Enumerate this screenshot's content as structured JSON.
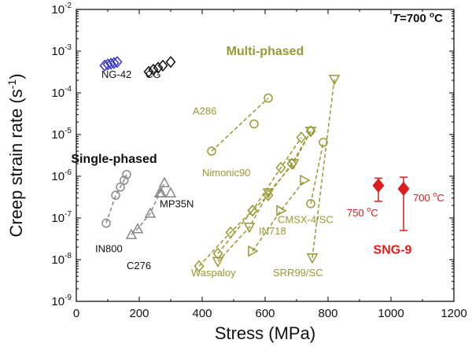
{
  "chart_data": {
    "type": "scatter",
    "title": "",
    "xlabel": "Stress (MPa)",
    "ylabel_main": "Creep strain rate (s",
    "ylabel_sup": "-1",
    "ylabel_close": ")",
    "xscale": "linear",
    "yscale": "log",
    "xlim": [
      0,
      1200
    ],
    "ylim": [
      1e-09,
      0.01
    ],
    "xticks": [
      0,
      200,
      400,
      600,
      800,
      1000,
      1200
    ],
    "xtick_labels": [
      "0",
      "200",
      "400",
      "600",
      "800",
      "1000",
      "1200"
    ],
    "ytick_exponents": [
      -9,
      -8,
      -7,
      -6,
      -5,
      -4,
      -3,
      -2
    ],
    "ytick_base": "10",
    "grid": false,
    "temperature_label": {
      "italic": "T",
      "value": "=700 ",
      "sup": "o",
      "unit": "C"
    },
    "group_labels": [
      {
        "id": "multi",
        "text": "Multi-phased",
        "color": "#999933"
      },
      {
        "id": "single",
        "text": "Single-phased",
        "color": "#111111"
      },
      {
        "id": "sng",
        "text": "SNG-9",
        "color": "#dd1c1c"
      }
    ],
    "series": [
      {
        "name": "NG-42",
        "marker": "diamond",
        "color": "#3333cc",
        "connected": false,
        "x": [
          90,
          100,
          110,
          120,
          130
        ],
        "y": [
          0.00045,
          0.00048,
          0.0005,
          0.00052,
          0.00055
        ]
      },
      {
        "name": "CG",
        "marker": "diamond",
        "color": "#111111",
        "connected": false,
        "x": [
          230,
          245,
          260,
          275,
          300
        ],
        "y": [
          0.00032,
          0.00036,
          0.0004,
          0.00045,
          0.00055
        ]
      },
      {
        "name": "A286",
        "marker": "circle",
        "color": "#999933",
        "connected": true,
        "x": [
          430,
          610
        ],
        "y": [
          4e-06,
          7.5e-05
        ]
      },
      {
        "name": "A286-extra",
        "marker": "circle",
        "color": "#999933",
        "connected": false,
        "x": [
          565
        ],
        "y": [
          1.8e-05
        ]
      },
      {
        "name": "Nimonic90",
        "marker": "diamond",
        "color": "#999933",
        "connected": true,
        "x": [
          390,
          490,
          560,
          650,
          715
        ],
        "y": [
          7e-09,
          4.5e-08,
          1.5e-07,
          1.6e-06,
          8.5e-06
        ]
      },
      {
        "name": "Waspaloy",
        "marker": "diamond",
        "color": "#999933",
        "connected": true,
        "x": [
          450,
          560,
          610,
          685,
          745
        ],
        "y": [
          1.4e-08,
          1.5e-07,
          3.5e-07,
          2e-06,
          1.2e-05
        ]
      },
      {
        "name": "IN718",
        "marker": "triangle-down",
        "color": "#999933",
        "connected": true,
        "x": [
          450,
          550,
          610,
          690,
          745
        ],
        "y": [
          9e-09,
          6e-08,
          4e-07,
          2e-06,
          1.2e-05
        ]
      },
      {
        "name": "IN718-b",
        "marker": "triangle-right",
        "color": "#999933",
        "connected": true,
        "x": [
          560,
          650,
          725
        ],
        "y": [
          1.6e-08,
          1.5e-07,
          8e-07
        ]
      },
      {
        "name": "CMSX-4/SC",
        "marker": "circle",
        "color": "#999933",
        "connected": true,
        "x": [
          745,
          785
        ],
        "y": [
          2.2e-07,
          6.5e-06
        ]
      },
      {
        "name": "SRR99/SC",
        "marker": "triangle-down",
        "color": "#999933",
        "connected": true,
        "x": [
          750,
          820
        ],
        "y": [
          1.1e-08,
          0.00021
        ]
      },
      {
        "name": "IN800",
        "marker": "circle",
        "color": "#888888",
        "connected": true,
        "x": [
          95,
          125,
          140,
          152,
          160
        ],
        "y": [
          7.5e-08,
          3.5e-07,
          5.5e-07,
          8e-07,
          1.1e-06
        ]
      },
      {
        "name": "C276",
        "marker": "triangle-up",
        "color": "#888888",
        "connected": true,
        "x": [
          175,
          195,
          235,
          265,
          280
        ],
        "y": [
          4e-08,
          5.5e-08,
          1.3e-07,
          4e-07,
          7e-07
        ]
      },
      {
        "name": "MP35N",
        "marker": "triangle-up",
        "color": "#888888",
        "connected": false,
        "x": [
          270,
          300
        ],
        "y": [
          4e-07,
          4e-07
        ]
      },
      {
        "name": "SNG-9 750",
        "marker": "filled-diamond",
        "color": "#dd1c1c",
        "connected": false,
        "x": [
          960
        ],
        "y": [
          6e-07
        ],
        "yerr_low": [
          2.5e-07
        ],
        "yerr_high": [
          9e-07
        ]
      },
      {
        "name": "SNG-9 700",
        "marker": "filled-diamond",
        "color": "#dd1c1c",
        "connected": false,
        "x": [
          1040
        ],
        "y": [
          5e-07
        ],
        "yerr_low": [
          5e-08
        ],
        "yerr_high": [
          9.5e-07
        ]
      }
    ],
    "annotations": [
      {
        "id": "ng42",
        "text": "NG-42",
        "color": "#111111",
        "x": 80,
        "y": 0.00023
      },
      {
        "id": "cg",
        "text": "CG",
        "color": "#111111",
        "x": 220,
        "y": 0.00023
      },
      {
        "id": "a286",
        "text": "A286",
        "color": "#999933",
        "x": 370,
        "y": 3e-05
      },
      {
        "id": "nimonic",
        "text": "Nimonic90",
        "color": "#999933",
        "x": 400,
        "y": 1e-06
      },
      {
        "id": "waspaloy",
        "text": "Waspaloy",
        "color": "#999933",
        "x": 365,
        "y": 4e-09
      },
      {
        "id": "in718",
        "text": "IN718",
        "color": "#999933",
        "x": 580,
        "y": 4e-08
      },
      {
        "id": "cmsx",
        "text": "CMSX-4/SC",
        "color": "#999933",
        "x": 640,
        "y": 7.5e-08
      },
      {
        "id": "srr99",
        "text": "SRR99/SC",
        "color": "#999933",
        "x": 625,
        "y": 4e-09
      },
      {
        "id": "in800",
        "text": "IN800",
        "color": "#111111",
        "x": 60,
        "y": 1.5e-08
      },
      {
        "id": "c276",
        "text": "C276",
        "color": "#111111",
        "x": 160,
        "y": 6e-09
      },
      {
        "id": "mp35n",
        "text": "MP35N",
        "color": "#111111",
        "x": 265,
        "y": 1.8e-07
      },
      {
        "id": "t750",
        "text": "750 ",
        "sup": "o",
        "unit": "C",
        "color": "#dd1c1c",
        "x": 860,
        "y": 1.1e-07
      },
      {
        "id": "t700",
        "text": "700 ",
        "sup": "o",
        "unit": "C",
        "color": "#dd1c1c",
        "x": 1070,
        "y": 2.5e-07
      }
    ]
  }
}
